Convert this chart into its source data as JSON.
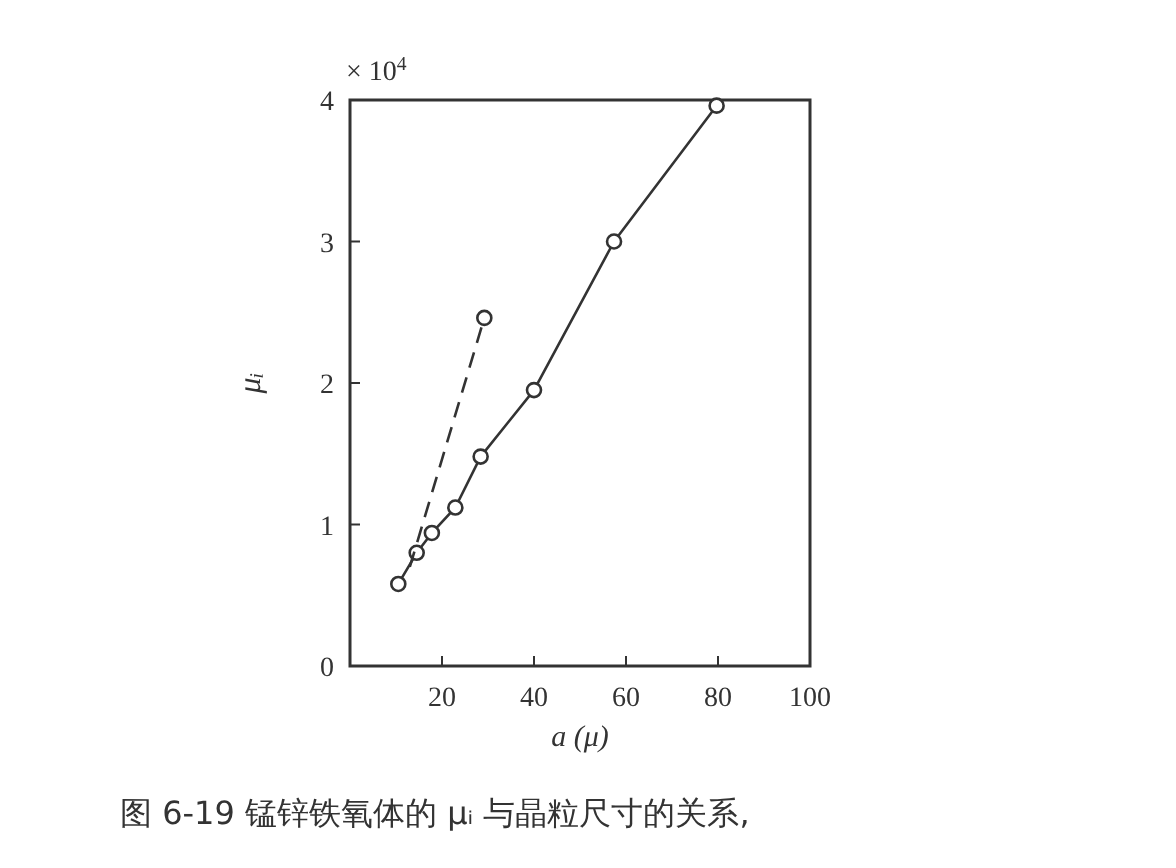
{
  "chart_data": {
    "type": "line",
    "xlabel": "a (μ)",
    "ylabel": "μᵢ",
    "annotations": [
      "× 10$^{4}$",
      "图 6-19  锰锌铁氧体的 μᵢ 与晶粒尺寸的关系,"
    ],
    "xlim": [
      0,
      100
    ],
    "ylim": [
      0,
      4
    ],
    "xticks": [
      20,
      40,
      60,
      80,
      100
    ],
    "yticks": [
      0,
      1,
      2,
      3,
      4
    ],
    "grid": false,
    "series": [
      {
        "color": "#333333",
        "marker": "circle",
        "line_style": "solid",
        "x": [
          10.5,
          14.5,
          17.8,
          22.9,
          28.4,
          40.0,
          57.4,
          79.7
        ],
        "values": [
          0.58,
          0.8,
          0.94,
          1.12,
          1.48,
          1.95,
          3.0,
          3.96
        ]
      },
      {
        "color": "#333333",
        "marker": "none",
        "line_style": "dashed",
        "x": [
          13,
          29.2
        ],
        "values": [
          0.7,
          2.46
        ]
      },
      {
        "type": "scatter",
        "color": "#333333",
        "marker": "circle",
        "x": [
          29.2
        ],
        "values": [
          2.46
        ]
      }
    ]
  }
}
